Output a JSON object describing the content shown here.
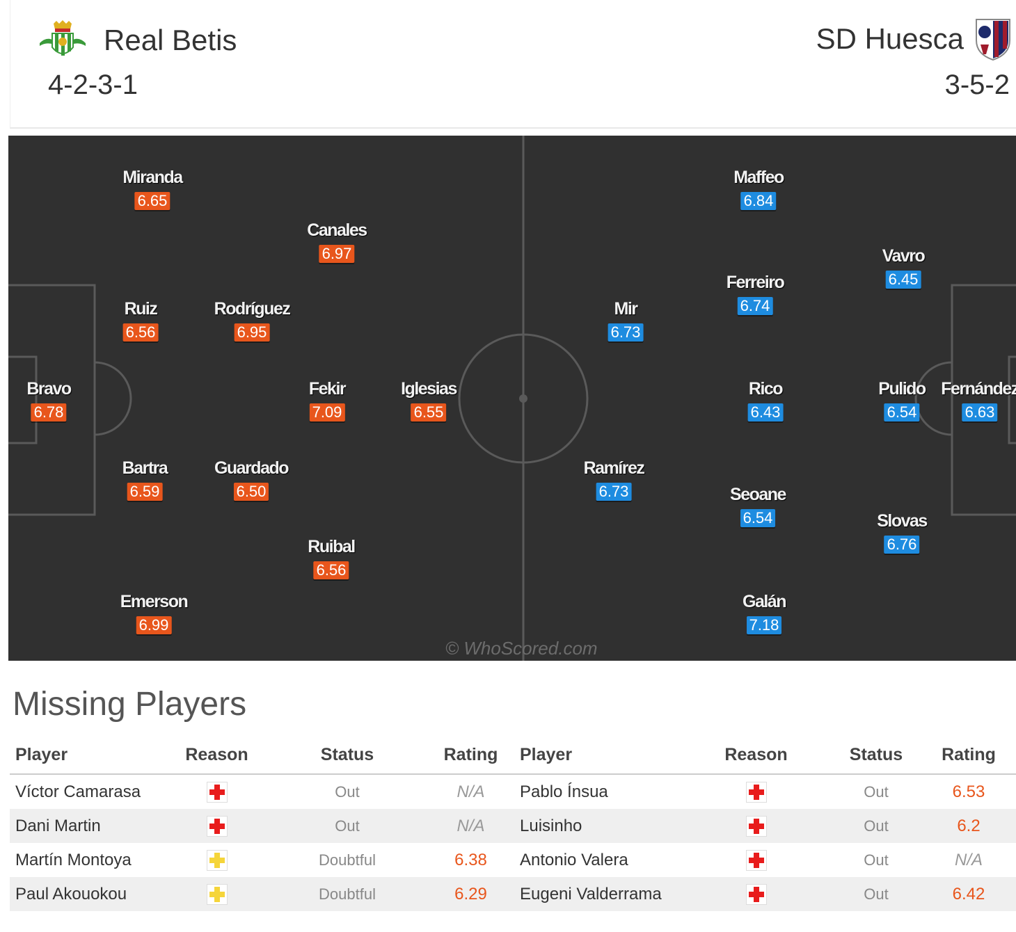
{
  "header": {
    "home": {
      "name": "Real Betis",
      "formation": "4-2-3-1",
      "badge_icon": "real-betis-crest-icon"
    },
    "away": {
      "name": "SD Huesca",
      "formation": "3-5-2",
      "badge_icon": "sd-huesca-crest-icon"
    }
  },
  "pitch": {
    "watermark": "© WhoScored.com",
    "home_players": [
      {
        "name": "Miranda",
        "rating": "6.65"
      },
      {
        "name": "Canales",
        "rating": "6.97"
      },
      {
        "name": "Ruiz",
        "rating": "6.56"
      },
      {
        "name": "Rodríguez",
        "rating": "6.95"
      },
      {
        "name": "Bravo",
        "rating": "6.78"
      },
      {
        "name": "Fekir",
        "rating": "7.09"
      },
      {
        "name": "Iglesias",
        "rating": "6.55"
      },
      {
        "name": "Bartra",
        "rating": "6.59"
      },
      {
        "name": "Guardado",
        "rating": "6.50"
      },
      {
        "name": "Ruibal",
        "rating": "6.56"
      },
      {
        "name": "Emerson",
        "rating": "6.99"
      }
    ],
    "away_players": [
      {
        "name": "Maffeo",
        "rating": "6.84"
      },
      {
        "name": "Vavro",
        "rating": "6.45"
      },
      {
        "name": "Ferreiro",
        "rating": "6.74"
      },
      {
        "name": "Mir",
        "rating": "6.73"
      },
      {
        "name": "Rico",
        "rating": "6.43"
      },
      {
        "name": "Pulido",
        "rating": "6.54"
      },
      {
        "name": "Fernández",
        "rating": "6.63"
      },
      {
        "name": "Ramírez",
        "rating": "6.73"
      },
      {
        "name": "Seoane",
        "rating": "6.54"
      },
      {
        "name": "Slovas",
        "rating": "6.76"
      },
      {
        "name": "Galán",
        "rating": "7.18"
      }
    ]
  },
  "missing": {
    "title": "Missing Players",
    "columns": [
      "Player",
      "Reason",
      "Status",
      "Rating",
      "Player",
      "Reason",
      "Status",
      "Rating"
    ],
    "rows": [
      {
        "home_player": "Víctor Camarasa",
        "home_reason": "injury",
        "home_status": "Out",
        "home_rating": "N/A",
        "away_player": "Pablo Ínsua",
        "away_reason": "injury",
        "away_status": "Out",
        "away_rating": "6.53"
      },
      {
        "home_player": "Dani Martin",
        "home_reason": "injury",
        "home_status": "Out",
        "home_rating": "N/A",
        "away_player": "Luisinho",
        "away_reason": "injury",
        "away_status": "Out",
        "away_rating": "6.2"
      },
      {
        "home_player": "Martín Montoya",
        "home_reason": "doubt",
        "home_status": "Doubtful",
        "home_rating": "6.38",
        "away_player": "Antonio Valera",
        "away_reason": "injury",
        "away_status": "Out",
        "away_rating": "N/A"
      },
      {
        "home_player": "Paul Akouokou",
        "home_reason": "doubt",
        "home_status": "Doubtful",
        "home_rating": "6.29",
        "away_player": "Eugeni Valderrama",
        "away_reason": "injury",
        "away_status": "Out",
        "away_rating": "6.42"
      }
    ]
  },
  "colors": {
    "home_rating": "#e8561c",
    "away_rating": "#1e8ce0",
    "pitch": "#303030"
  }
}
